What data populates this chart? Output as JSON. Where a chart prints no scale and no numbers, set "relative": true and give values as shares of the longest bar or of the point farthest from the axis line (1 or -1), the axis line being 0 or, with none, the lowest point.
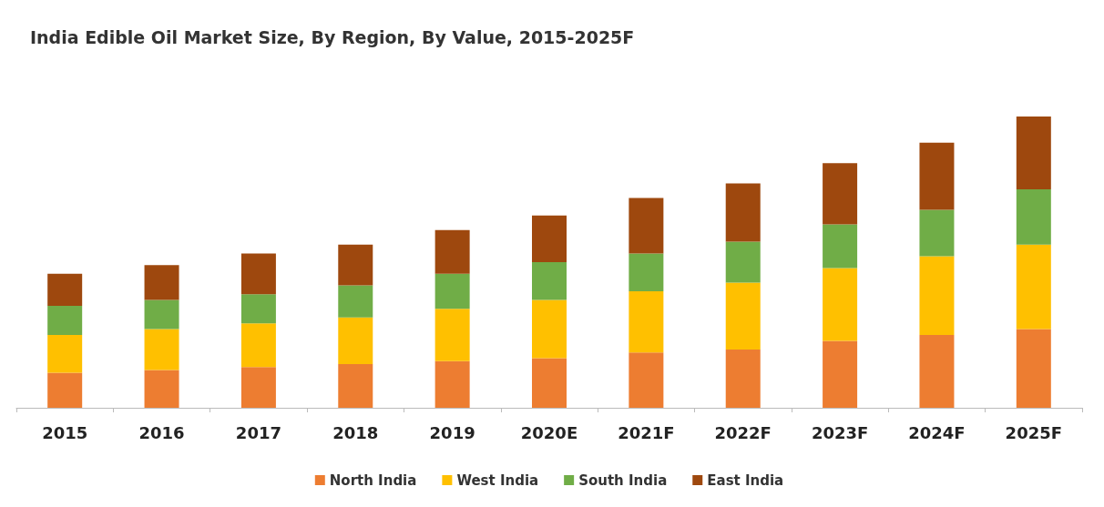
{
  "chart_data": {
    "type": "bar",
    "title": "India Edible Oil Market Size, By Region, By Value, 2015-2025F",
    "categories": [
      "2015",
      "2016",
      "2017",
      "2018",
      "2019",
      "2020E",
      "2021F",
      "2022F",
      "2023F",
      "2024F",
      "2025F"
    ],
    "stacked": true,
    "relative": true,
    "legend": "bottom",
    "grid": false,
    "series": [
      {
        "name": "North India",
        "color": "#ed7d31",
        "values": [
          0.12,
          0.13,
          0.14,
          0.15,
          0.16,
          0.17,
          0.19,
          0.2,
          0.23,
          0.25,
          0.27
        ]
      },
      {
        "name": "West India",
        "color": "#ffc000",
        "values": [
          0.13,
          0.14,
          0.15,
          0.16,
          0.18,
          0.2,
          0.21,
          0.23,
          0.25,
          0.27,
          0.29
        ]
      },
      {
        "name": "South India",
        "color": "#70ad47",
        "values": [
          0.1,
          0.1,
          0.1,
          0.11,
          0.12,
          0.13,
          0.13,
          0.14,
          0.15,
          0.16,
          0.19
        ]
      },
      {
        "name": "East India",
        "color": "#9e480e",
        "values": [
          0.11,
          0.12,
          0.14,
          0.14,
          0.15,
          0.16,
          0.19,
          0.2,
          0.21,
          0.23,
          0.25
        ]
      }
    ]
  }
}
